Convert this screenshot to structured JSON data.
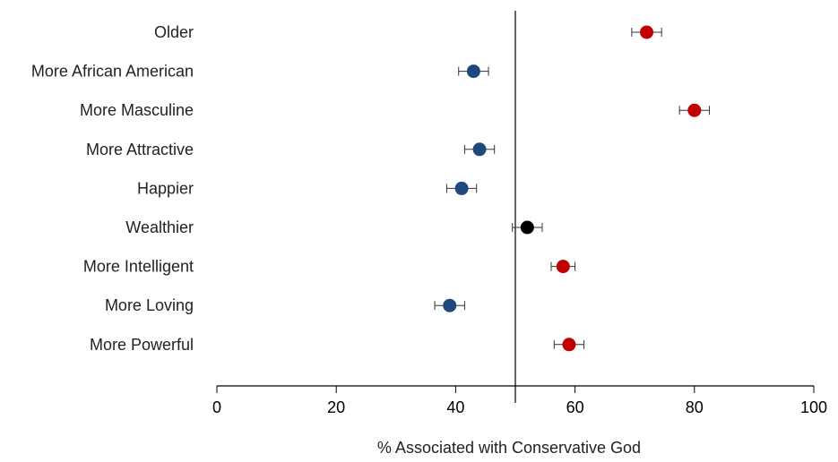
{
  "chart_data": {
    "type": "scatter",
    "title": "",
    "xlabel": "% Associated with Conservative God",
    "ylabel": "",
    "xlim": [
      0,
      100
    ],
    "xticks": [
      0,
      20,
      40,
      60,
      80,
      100
    ],
    "reference_line_x": 50,
    "grid": false,
    "legend": "none",
    "error_bars": true,
    "categories": [
      "Older",
      "More African American",
      "More Masculine",
      "More Attractive",
      "Happier",
      "Wealthier",
      "More Intelligent",
      "More Loving",
      "More Powerful"
    ],
    "points": [
      {
        "label": "Older",
        "value": 72,
        "err": 2.5,
        "color": "#c00000"
      },
      {
        "label": "More African American",
        "value": 43,
        "err": 2.5,
        "color": "#1f497d"
      },
      {
        "label": "More Masculine",
        "value": 80,
        "err": 2.5,
        "color": "#c00000"
      },
      {
        "label": "More Attractive",
        "value": 44,
        "err": 2.5,
        "color": "#1f497d"
      },
      {
        "label": "Happier",
        "value": 41,
        "err": 2.5,
        "color": "#1f497d"
      },
      {
        "label": "Wealthier",
        "value": 52,
        "err": 2.5,
        "color": "#000000"
      },
      {
        "label": "More Intelligent",
        "value": 58,
        "err": 2,
        "color": "#c00000"
      },
      {
        "label": "More Loving",
        "value": 39,
        "err": 2.5,
        "color": "#1f497d"
      },
      {
        "label": "More Powerful",
        "value": 59,
        "err": 2.5,
        "color": "#c00000"
      }
    ]
  }
}
